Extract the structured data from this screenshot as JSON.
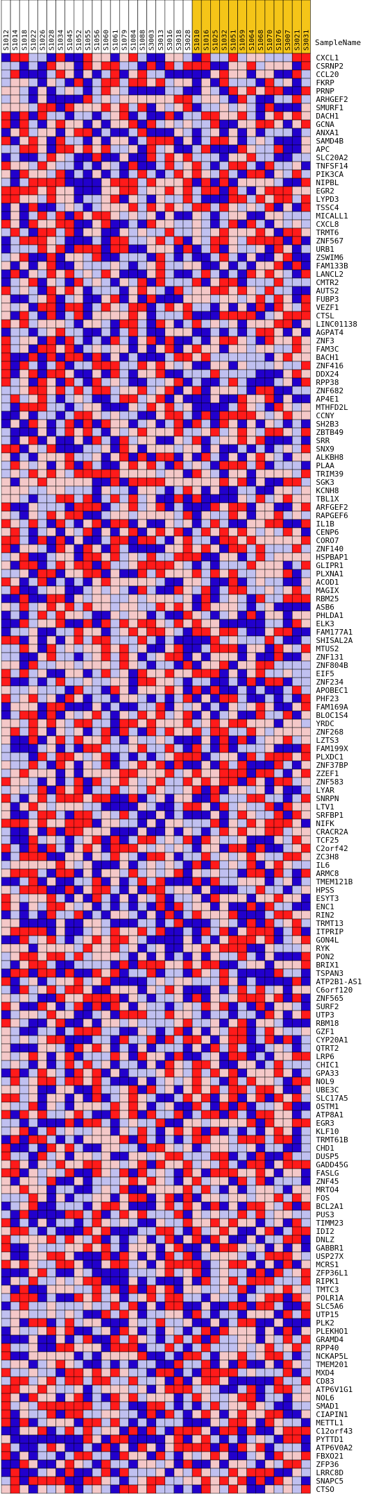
{
  "chart_data": {
    "type": "heatmap",
    "row_header": "SampleName",
    "columns": [
      {
        "label": "S1012",
        "group": 0
      },
      {
        "label": "S1014",
        "group": 0
      },
      {
        "label": "S1018",
        "group": 0
      },
      {
        "label": "S1022",
        "group": 0
      },
      {
        "label": "S1026",
        "group": 0
      },
      {
        "label": "S1028",
        "group": 0
      },
      {
        "label": "S1034",
        "group": 0
      },
      {
        "label": "S1045",
        "group": 0
      },
      {
        "label": "S1052",
        "group": 0
      },
      {
        "label": "S1055",
        "group": 0
      },
      {
        "label": "S1056",
        "group": 0
      },
      {
        "label": "S1060",
        "group": 0
      },
      {
        "label": "S1061",
        "group": 0
      },
      {
        "label": "S1079",
        "group": 0
      },
      {
        "label": "S1084",
        "group": 0
      },
      {
        "label": "S1088",
        "group": 0
      },
      {
        "label": "S3003",
        "group": 0
      },
      {
        "label": "S3013",
        "group": 0
      },
      {
        "label": "S3016",
        "group": 0
      },
      {
        "label": "S3018",
        "group": 0
      },
      {
        "label": "S3028",
        "group": 0
      },
      {
        "label": "S1010",
        "group": 1
      },
      {
        "label": "S1016",
        "group": 1
      },
      {
        "label": "S1025",
        "group": 1
      },
      {
        "label": "S1032",
        "group": 1
      },
      {
        "label": "S1051",
        "group": 1
      },
      {
        "label": "S1059",
        "group": 1
      },
      {
        "label": "S1064",
        "group": 1
      },
      {
        "label": "S1068",
        "group": 1
      },
      {
        "label": "S1070",
        "group": 1
      },
      {
        "label": "S1076",
        "group": 1
      },
      {
        "label": "S3007",
        "group": 1
      },
      {
        "label": "S3021",
        "group": 1
      },
      {
        "label": "S3031",
        "group": 1
      }
    ],
    "rows": [
      "CXCL1",
      "CSRNP2",
      "CCL20",
      "FKRP",
      "PRNP",
      "ARHGEF2",
      "SMURF1",
      "DACH1",
      "GCNA",
      "ANXA1",
      "SAMD4B",
      "APC",
      "SLC20A2",
      "TNFSF14",
      "PIK3CA",
      "NIPBL",
      "EGR2",
      "LYPD3",
      "TSSC4",
      "MICALL1",
      "CXCL8",
      "TRMT6",
      "ZNF567",
      "URB1",
      "ZSWIM6",
      "FAM133B",
      "LANCL2",
      "CMTR2",
      "AUTS2",
      "FUBP3",
      "VEZF1",
      "CTSL",
      "LINC01138",
      "AGPAT4",
      "ZNF3",
      "FAM3C",
      "BACH1",
      "ZNF416",
      "DDX24",
      "RPP38",
      "ZNF682",
      "AP4E1",
      "MTHFD2L",
      "CCNY",
      "SH2B3",
      "ZBTB49",
      "SRR",
      "SNX9",
      "ALKBH8",
      "PLAA",
      "TRIM39",
      "SGK3",
      "KCNH8",
      "TBL1X",
      "ARFGEF2",
      "RAPGEF6",
      "IL1B",
      "CENP6",
      "CORO7",
      "ZNF140",
      "HSPBAP1",
      "GLIPR1",
      "PLXNA1",
      "ACOD1",
      "MAGIX",
      "RBM25",
      "ASB6",
      "PHLDA1",
      "ELK3",
      "FAM177A1",
      "SHISAL2A",
      "MTUS2",
      "ZNF131",
      "ZNF804B",
      "EIF5",
      "ZNF234",
      "APOBEC1",
      "PHF23",
      "FAM169A",
      "BLOC1S4",
      "YRDC",
      "ZNF268",
      "LZTS3",
      "FAM199X",
      "PLXDC1",
      "ZNF37BP",
      "ZZEF1",
      "ZNF583",
      "LYAR",
      "SNRPN",
      "LTV1",
      "SRFBP1",
      "NIFK",
      "CRACR2A",
      "TCF25",
      "C2orf42",
      "ZC3H8",
      "IL6",
      "ARMC8",
      "TMEM121B",
      "HPSS",
      "ESYT3",
      "ENC1",
      "RIN2",
      "TRMT13",
      "ITPRIP",
      "GON4L",
      "RYK",
      "PON2",
      "BRIX1",
      "TSPAN3",
      "ATP2B1-AS1",
      "C6orf120",
      "ZNF565",
      "SURF2",
      "UTP3",
      "RBM18",
      "GZF1",
      "CYP20A1",
      "QTRT2",
      "LRP6",
      "CHIC1",
      "GPA33",
      "NOL9",
      "UBE3C",
      "SLC17A5",
      "OSTM1",
      "ATP8A1",
      "EGR3",
      "KLF10",
      "TRMT61B",
      "CHD1",
      "DUSP5",
      "GADD45G",
      "FASLG",
      "ZNF45",
      "MRTO4",
      "FOS",
      "BCL2A1",
      "PUS3",
      "TIMM23",
      "IDI2",
      "DNLZ",
      "GABBR1",
      "USP27X",
      "MCRS1",
      "ZFP36L1",
      "RIPK1",
      "TMTC3",
      "POLR1A",
      "SLC5A6",
      "UTP15",
      "PLK2",
      "PLEKHO1",
      "GRAMD4",
      "RPP40",
      "NCKAP5L",
      "TMEM201",
      "MXD4",
      "CD83",
      "ATP6V1G1",
      "NOL6",
      "SMAD1",
      "CIAPIN1",
      "METTL1",
      "C12orf43",
      "PYTTD1",
      "ATP6V0A2",
      "FBXO21",
      "ZFP36",
      "LRRC8D",
      "SNAPC5",
      "CTSO"
    ],
    "scale": [
      -1,
      1
    ],
    "colors": {
      "low": "#2200cc",
      "mid_low": "#c0c0f0",
      "mid_high": "#f4c8c8",
      "high": "#ff1a1a",
      "group1_header": "#f5c518",
      "grid": "#000000"
    }
  }
}
